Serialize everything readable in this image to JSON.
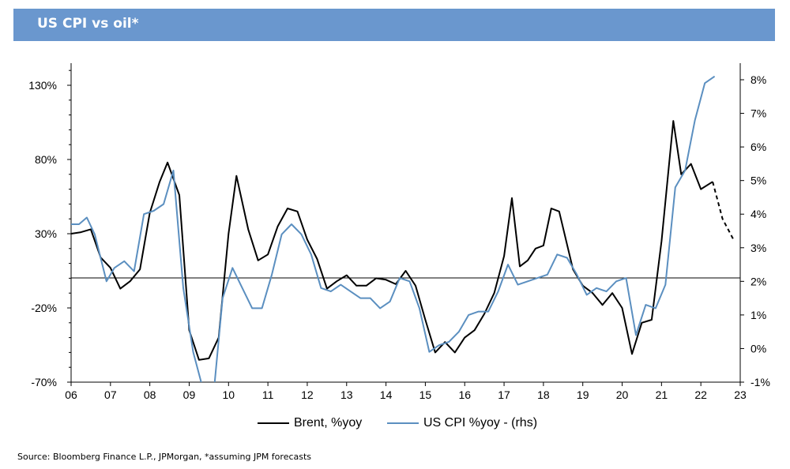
{
  "title": "US CPI vs oil*",
  "source": "Source: Bloomberg Finance L.P., JPMorgan, *assuming JPM forecasts",
  "colors": {
    "title_bar": "#6a97ce",
    "brent": "#000000",
    "cpi": "#5b8fc0"
  },
  "chart_data": {
    "type": "line",
    "title": "",
    "xlabel": "",
    "ylabel": "",
    "x_ticks": [
      "06",
      "07",
      "08",
      "09",
      "10",
      "11",
      "12",
      "13",
      "14",
      "15",
      "16",
      "17",
      "18",
      "19",
      "20",
      "21",
      "22",
      "23"
    ],
    "y_left_ticks": [
      "130%",
      "80%",
      "30%",
      "-20%",
      "-70%"
    ],
    "y_right_ticks": [
      "8%",
      "7%",
      "6%",
      "5%",
      "4%",
      "3%",
      "2%",
      "1%",
      "0%",
      "-1%"
    ],
    "y_left_lim": [
      -70,
      140
    ],
    "y_right_lim": [
      -1,
      8.5
    ],
    "x_lim": [
      2006,
      2023
    ],
    "legend_position": "bottom",
    "series": [
      {
        "name": "Brent, %yoy",
        "axis": "left",
        "color": "#000000",
        "points": [
          [
            2006.0,
            30
          ],
          [
            2006.25,
            31
          ],
          [
            2006.5,
            33
          ],
          [
            2006.75,
            14
          ],
          [
            2007.0,
            7
          ],
          [
            2007.25,
            -7
          ],
          [
            2007.5,
            -2
          ],
          [
            2007.75,
            6
          ],
          [
            2008.0,
            44
          ],
          [
            2008.25,
            65
          ],
          [
            2008.45,
            78
          ],
          [
            2008.75,
            56
          ],
          [
            2009.0,
            -35
          ],
          [
            2009.25,
            -55
          ],
          [
            2009.5,
            -54
          ],
          [
            2009.75,
            -40
          ],
          [
            2010.0,
            30
          ],
          [
            2010.2,
            69
          ],
          [
            2010.5,
            33
          ],
          [
            2010.75,
            12
          ],
          [
            2011.0,
            16
          ],
          [
            2011.25,
            35
          ],
          [
            2011.5,
            47
          ],
          [
            2011.75,
            45
          ],
          [
            2012.0,
            26
          ],
          [
            2012.25,
            13
          ],
          [
            2012.5,
            -7
          ],
          [
            2012.75,
            -2
          ],
          [
            2013.0,
            2
          ],
          [
            2013.25,
            -5
          ],
          [
            2013.5,
            -5
          ],
          [
            2013.75,
            0
          ],
          [
            2014.0,
            -1
          ],
          [
            2014.25,
            -4
          ],
          [
            2014.5,
            5
          ],
          [
            2014.75,
            -5
          ],
          [
            2015.0,
            -28
          ],
          [
            2015.25,
            -50
          ],
          [
            2015.5,
            -43
          ],
          [
            2015.75,
            -50
          ],
          [
            2016.0,
            -40
          ],
          [
            2016.25,
            -35
          ],
          [
            2016.5,
            -24
          ],
          [
            2016.75,
            -10
          ],
          [
            2017.0,
            15
          ],
          [
            2017.2,
            54
          ],
          [
            2017.4,
            8
          ],
          [
            2017.6,
            12
          ],
          [
            2017.8,
            20
          ],
          [
            2018.0,
            22
          ],
          [
            2018.2,
            47
          ],
          [
            2018.4,
            45
          ],
          [
            2018.75,
            6
          ],
          [
            2019.0,
            -5
          ],
          [
            2019.25,
            -10
          ],
          [
            2019.5,
            -18
          ],
          [
            2019.75,
            -10
          ],
          [
            2020.0,
            -20
          ],
          [
            2020.25,
            -51
          ],
          [
            2020.5,
            -30
          ],
          [
            2020.75,
            -28
          ],
          [
            2021.0,
            25
          ],
          [
            2021.3,
            106
          ],
          [
            2021.5,
            70
          ],
          [
            2021.75,
            77
          ],
          [
            2022.0,
            60
          ],
          [
            2022.3,
            65
          ]
        ]
      },
      {
        "name": "Brent forecast",
        "axis": "left",
        "color": "#000000",
        "dashed": true,
        "points": [
          [
            2022.3,
            65
          ],
          [
            2022.55,
            40
          ],
          [
            2022.85,
            25
          ]
        ]
      },
      {
        "name": "US CPI %yoy - (rhs)",
        "axis": "right",
        "color": "#5b8fc0",
        "points": [
          [
            2006.0,
            3.7
          ],
          [
            2006.2,
            3.7
          ],
          [
            2006.4,
            3.9
          ],
          [
            2006.6,
            3.4
          ],
          [
            2006.9,
            2.0
          ],
          [
            2007.1,
            2.4
          ],
          [
            2007.35,
            2.6
          ],
          [
            2007.6,
            2.3
          ],
          [
            2007.85,
            4.0
          ],
          [
            2008.1,
            4.1
          ],
          [
            2008.35,
            4.3
          ],
          [
            2008.6,
            5.3
          ],
          [
            2008.85,
            1.8
          ],
          [
            2009.1,
            -0.1
          ],
          [
            2009.35,
            -1.2
          ],
          [
            2009.6,
            -1.6
          ],
          [
            2009.85,
            1.5
          ],
          [
            2010.1,
            2.4
          ],
          [
            2010.35,
            1.8
          ],
          [
            2010.6,
            1.2
          ],
          [
            2010.85,
            1.2
          ],
          [
            2011.1,
            2.2
          ],
          [
            2011.35,
            3.4
          ],
          [
            2011.6,
            3.7
          ],
          [
            2011.85,
            3.4
          ],
          [
            2012.1,
            2.8
          ],
          [
            2012.35,
            1.8
          ],
          [
            2012.6,
            1.7
          ],
          [
            2012.85,
            1.9
          ],
          [
            2013.1,
            1.7
          ],
          [
            2013.35,
            1.5
          ],
          [
            2013.6,
            1.5
          ],
          [
            2013.85,
            1.2
          ],
          [
            2014.1,
            1.4
          ],
          [
            2014.35,
            2.1
          ],
          [
            2014.6,
            2.0
          ],
          [
            2014.85,
            1.2
          ],
          [
            2015.1,
            -0.1
          ],
          [
            2015.35,
            0.1
          ],
          [
            2015.6,
            0.2
          ],
          [
            2015.85,
            0.5
          ],
          [
            2016.1,
            1.0
          ],
          [
            2016.35,
            1.1
          ],
          [
            2016.6,
            1.1
          ],
          [
            2016.85,
            1.7
          ],
          [
            2017.1,
            2.5
          ],
          [
            2017.35,
            1.9
          ],
          [
            2017.6,
            2.0
          ],
          [
            2017.85,
            2.1
          ],
          [
            2018.1,
            2.2
          ],
          [
            2018.35,
            2.8
          ],
          [
            2018.6,
            2.7
          ],
          [
            2018.85,
            2.2
          ],
          [
            2019.1,
            1.6
          ],
          [
            2019.35,
            1.8
          ],
          [
            2019.6,
            1.7
          ],
          [
            2019.85,
            2.0
          ],
          [
            2020.1,
            2.1
          ],
          [
            2020.35,
            0.4
          ],
          [
            2020.6,
            1.3
          ],
          [
            2020.85,
            1.2
          ],
          [
            2021.1,
            1.9
          ],
          [
            2021.35,
            4.8
          ],
          [
            2021.6,
            5.3
          ],
          [
            2021.85,
            6.8
          ],
          [
            2022.1,
            7.9
          ],
          [
            2022.35,
            8.1
          ]
        ]
      }
    ]
  },
  "legend": [
    {
      "label": "Brent, %yoy",
      "color": "#000000"
    },
    {
      "label": "US CPI %yoy - (rhs)",
      "color": "#5b8fc0"
    }
  ]
}
